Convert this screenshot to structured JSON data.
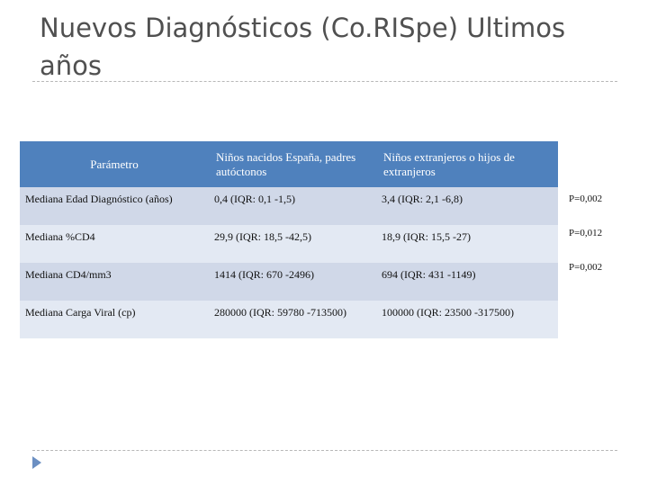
{
  "title": "Nuevos Diagnósticos (Co.RISpe) Ultimos años",
  "table": {
    "header": [
      "Parámetro",
      "Niños nacidos España, padres autóctonos",
      "Niños extranjeros o hijos de extranjeros"
    ],
    "rows": [
      [
        "Mediana Edad Diagnóstico (años)",
        "0,4 (IQR: 0,1 -1,5)",
        "3,4 (IQR: 2,1 -6,8)"
      ],
      [
        "Mediana %CD4",
        "29,9 (IQR: 18,5 -42,5)",
        "18,9 (IQR: 15,5 -27)"
      ],
      [
        "Mediana CD4/mm3",
        "1414 (IQR: 670 -2496)",
        "694 (IQR: 431 -1149)"
      ],
      [
        "Mediana Carga Viral (cp)",
        "280000 (IQR: 59780 -713500)",
        "100000 (IQR: 23500 -317500)"
      ]
    ],
    "p_values": [
      "P=0,002",
      "P=0,012",
      "P=0,002"
    ]
  }
}
